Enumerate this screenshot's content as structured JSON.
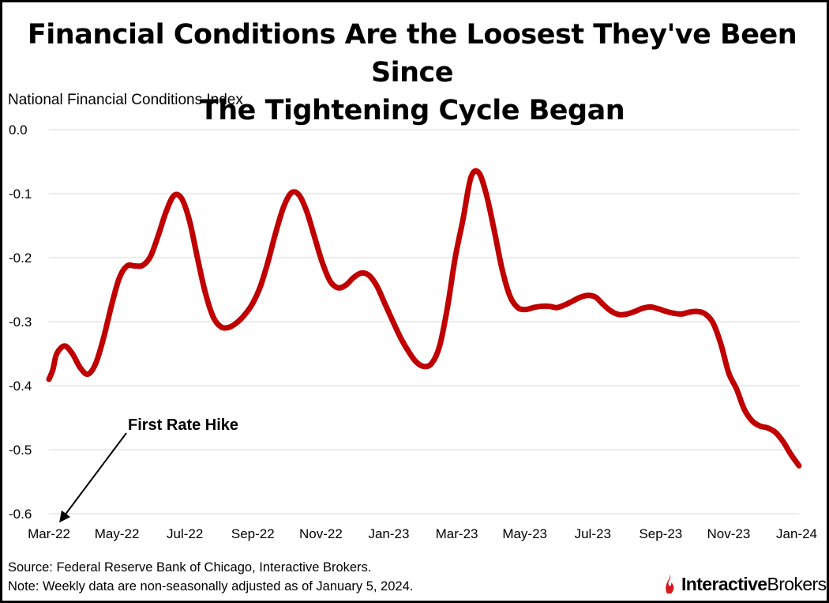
{
  "title_line1": "Financial Conditions Are the Loosest They've Been Since",
  "title_line2": "The Tightening Cycle Began",
  "ylabel": "National Financial Conditions Index",
  "source_line1": "Source: Federal Reserve Bank of Chicago, Interactive Brokers.",
  "note_line2": "Note: Weekly data are non-seasonally adjusted as of January 5, 2024.",
  "logo": {
    "part1": "Interactive",
    "part2": "Brokers",
    "accent_color": "#d71920"
  },
  "colors": {
    "line": "#c00000",
    "grid": "#d9d9d9",
    "text": "#000000"
  },
  "chart_data": {
    "type": "line",
    "title": "Financial Conditions Are the Loosest They've Been Since The Tightening Cycle Began",
    "ylabel": "National Financial Conditions Index",
    "xlabel": "",
    "ylim": [
      -0.6,
      0.0
    ],
    "y_ticks": [
      "0.0",
      "-0.1",
      "-0.2",
      "-0.3",
      "-0.4",
      "-0.5",
      "-0.6"
    ],
    "x_tick_labels": [
      "Mar-22",
      "May-22",
      "Jul-22",
      "Sep-22",
      "Nov-22",
      "Jan-23",
      "Mar-23",
      "May-23",
      "Jul-23",
      "Sep-23",
      "Nov-23",
      "Jan-24"
    ],
    "x_tick_weeks": [
      0,
      8.7,
      17.4,
      26.1,
      34.8,
      43.5,
      52.2,
      60.9,
      69.6,
      78.3,
      87,
      95.7
    ],
    "grid": true,
    "annotation": {
      "text": "First Rate Hike",
      "points_to_week": 0
    },
    "series": [
      {
        "name": "National Financial Conditions Index",
        "weeks": [
          0,
          0.5,
          1,
          2,
          3,
          4,
          5,
          6,
          7,
          8,
          9,
          10,
          11,
          12,
          13,
          14,
          15,
          16,
          17,
          18,
          19,
          20,
          21,
          22,
          23,
          24,
          25,
          26,
          27,
          28,
          29,
          30,
          31,
          32,
          33,
          34,
          35,
          36,
          37,
          38,
          39,
          40,
          41,
          42,
          43,
          44,
          45,
          46,
          47,
          48,
          49,
          50,
          51,
          52,
          53,
          54,
          55,
          56,
          57,
          58,
          59,
          60,
          61,
          62,
          63,
          64,
          65,
          66,
          67,
          68,
          69,
          70,
          71,
          72,
          73,
          74,
          75,
          76,
          77,
          78,
          79,
          80,
          81,
          82,
          83,
          84,
          85,
          86,
          87,
          88,
          89,
          90,
          91,
          92,
          93,
          94,
          95,
          96
        ],
        "values": [
          -0.39,
          -0.375,
          -0.35,
          -0.338,
          -0.35,
          -0.372,
          -0.382,
          -0.365,
          -0.325,
          -0.275,
          -0.232,
          -0.213,
          -0.213,
          -0.212,
          -0.198,
          -0.165,
          -0.128,
          -0.103,
          -0.108,
          -0.143,
          -0.2,
          -0.254,
          -0.292,
          -0.308,
          -0.309,
          -0.302,
          -0.29,
          -0.273,
          -0.247,
          -0.208,
          -0.162,
          -0.122,
          -0.099,
          -0.102,
          -0.128,
          -0.168,
          -0.208,
          -0.237,
          -0.247,
          -0.243,
          -0.231,
          -0.224,
          -0.228,
          -0.245,
          -0.272,
          -0.299,
          -0.325,
          -0.346,
          -0.363,
          -0.37,
          -0.365,
          -0.338,
          -0.278,
          -0.2,
          -0.14,
          -0.075,
          -0.067,
          -0.102,
          -0.158,
          -0.218,
          -0.26,
          -0.278,
          -0.281,
          -0.278,
          -0.276,
          -0.276,
          -0.278,
          -0.274,
          -0.268,
          -0.262,
          -0.259,
          -0.262,
          -0.274,
          -0.284,
          -0.289,
          -0.288,
          -0.284,
          -0.279,
          -0.277,
          -0.28,
          -0.284,
          -0.287,
          -0.288,
          -0.285,
          -0.284,
          -0.288,
          -0.302,
          -0.335,
          -0.38,
          -0.405,
          -0.437,
          -0.455,
          -0.463,
          -0.466,
          -0.473,
          -0.488,
          -0.508,
          -0.525
        ]
      }
    ]
  }
}
